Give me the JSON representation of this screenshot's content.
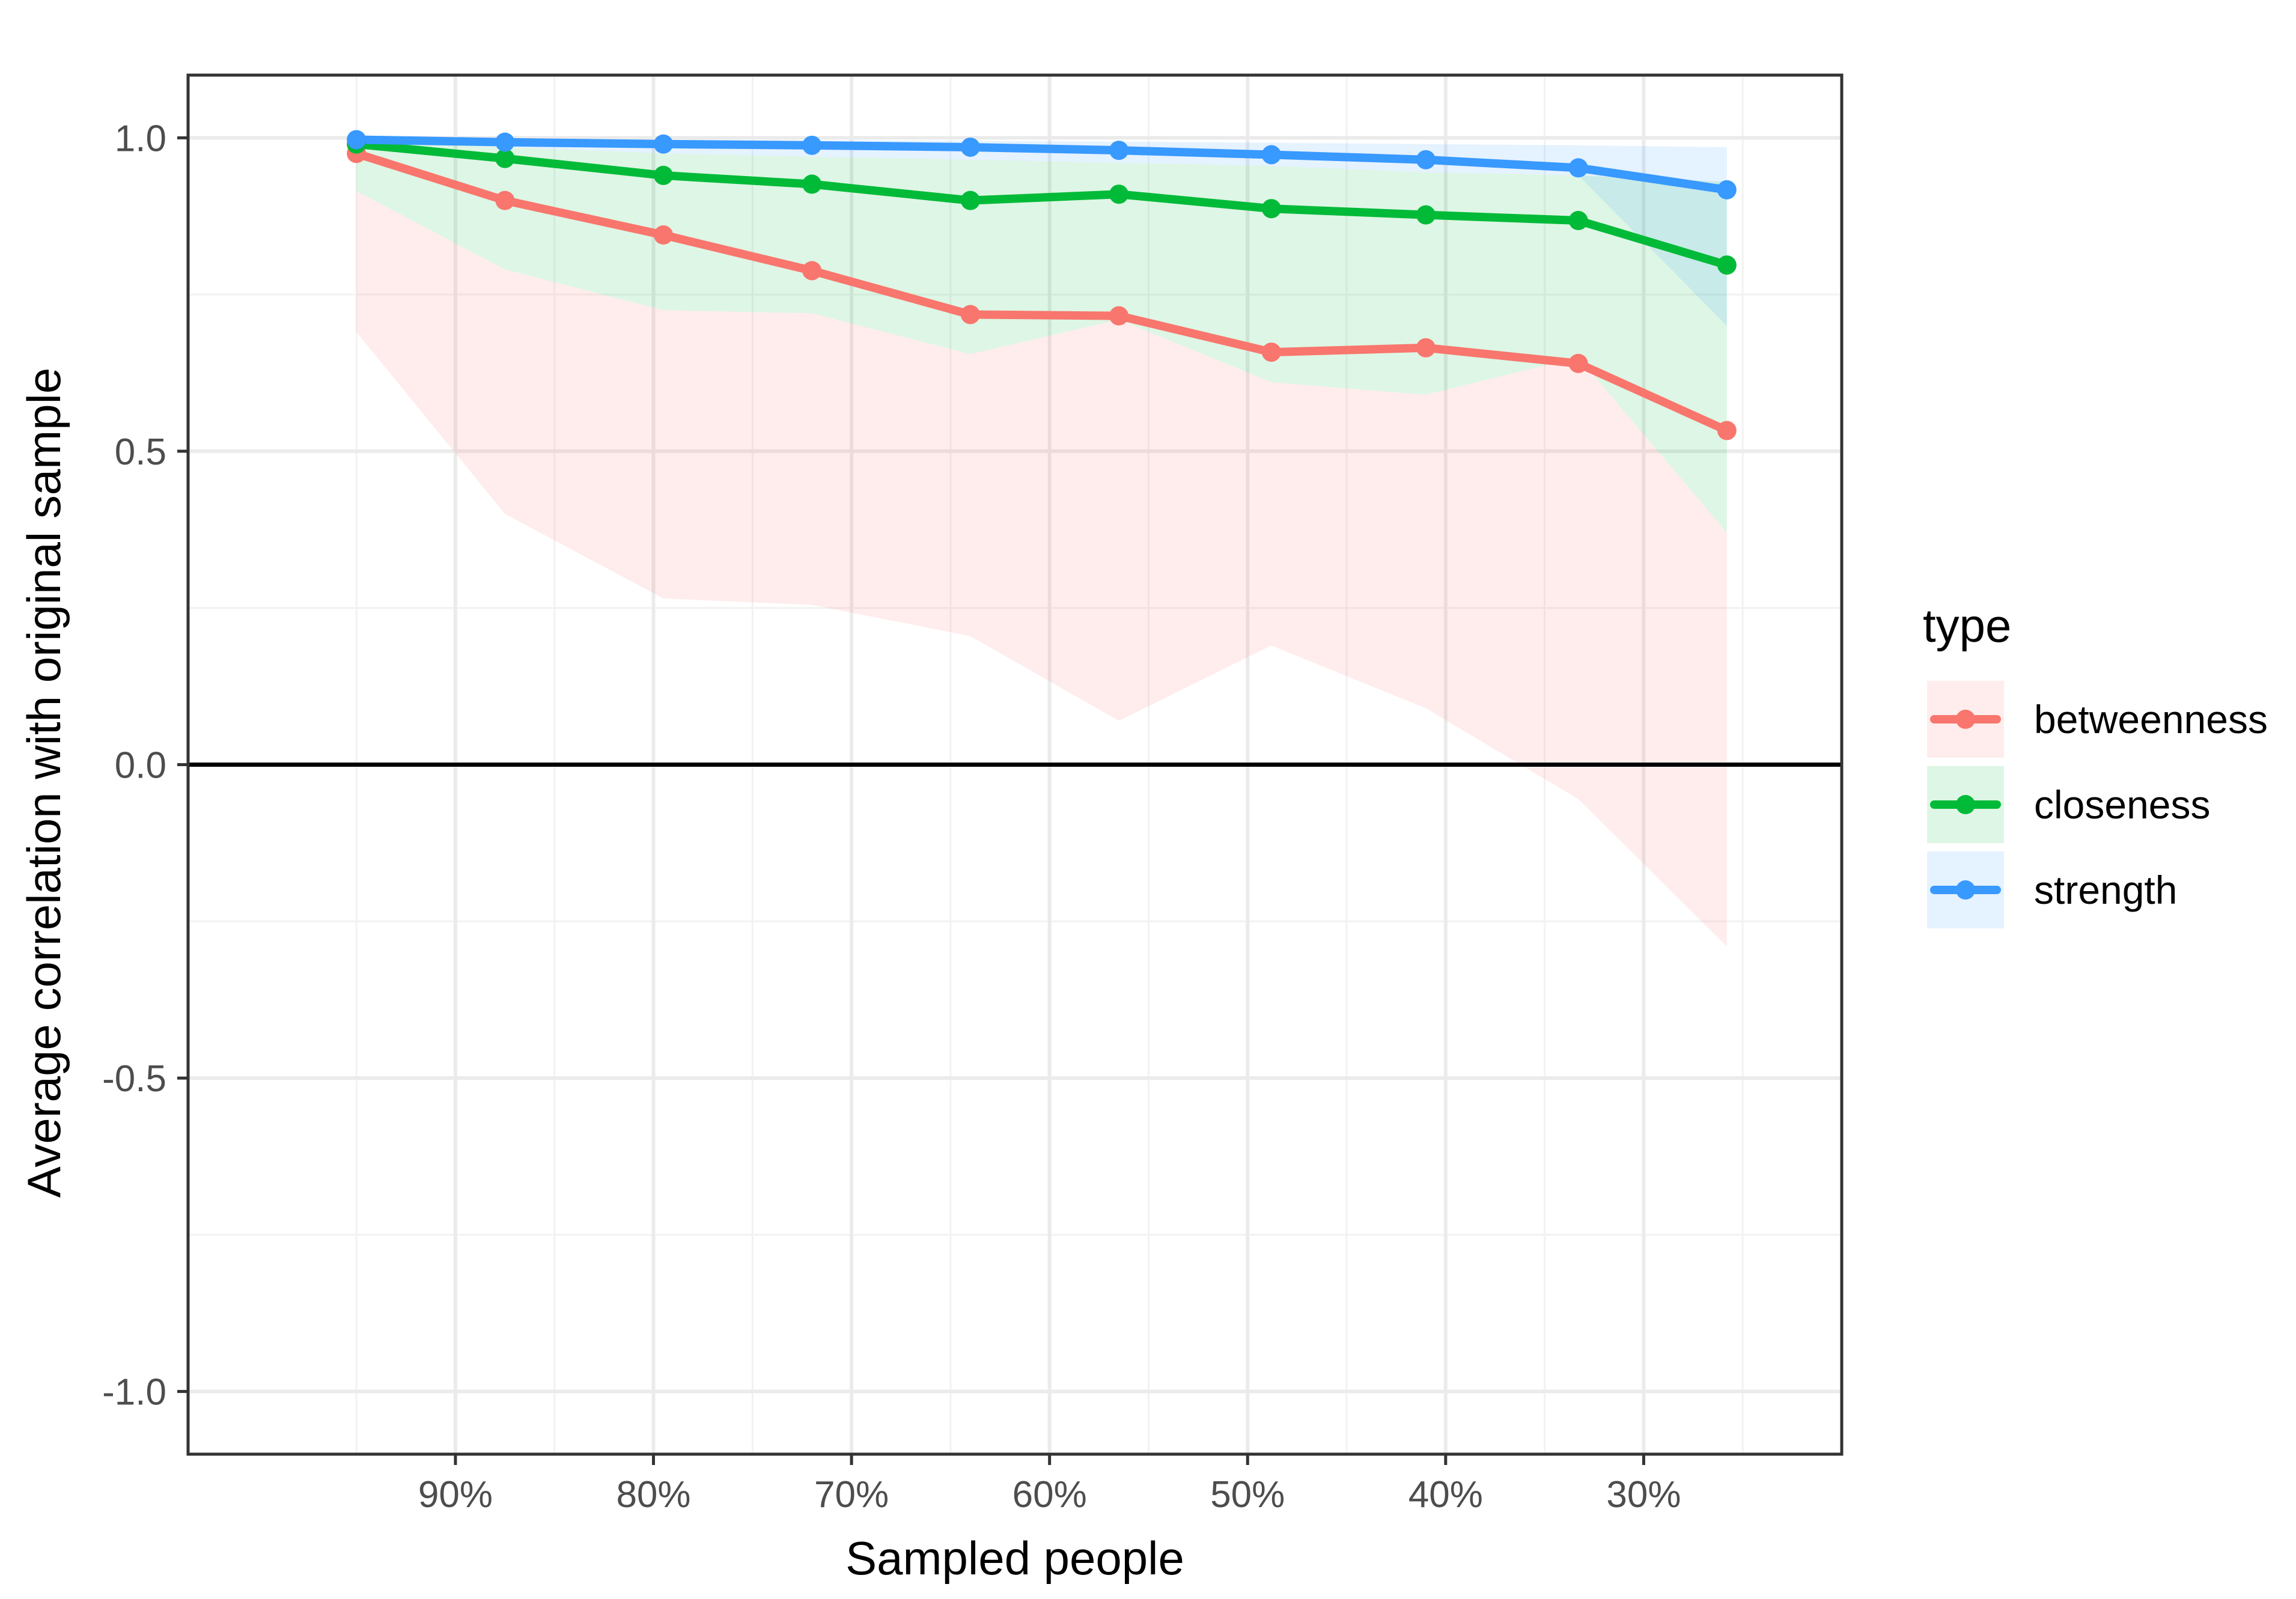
{
  "chart_data": {
    "type": "line",
    "title": "",
    "xlabel": "Sampled people",
    "ylabel": "Average correlation with original sample",
    "x": [
      0.95,
      0.875,
      0.795,
      0.72,
      0.64,
      0.565,
      0.488,
      0.41,
      0.333,
      0.258
    ],
    "xlim": [
      1.035,
      0.2
    ],
    "ylim": [
      -1.1,
      1.1
    ],
    "x_ticks": [
      {
        "value": 0.9,
        "label": "90%"
      },
      {
        "value": 0.8,
        "label": "80%"
      },
      {
        "value": 0.7,
        "label": "70%"
      },
      {
        "value": 0.6,
        "label": "60%"
      },
      {
        "value": 0.5,
        "label": "50%"
      },
      {
        "value": 0.4,
        "label": "40%"
      },
      {
        "value": 0.3,
        "label": "30%"
      }
    ],
    "y_ticks": [
      {
        "value": 1.0,
        "label": "1.0"
      },
      {
        "value": 0.5,
        "label": "0.5"
      },
      {
        "value": 0.0,
        "label": "0.0"
      },
      {
        "value": -0.5,
        "label": "-0.5"
      },
      {
        "value": -1.0,
        "label": "-1.0"
      }
    ],
    "hline": 0,
    "grid": true,
    "legend": {
      "title": "type",
      "position": "right"
    },
    "series": [
      {
        "name": "betweenness",
        "color": "#F8766D",
        "values": [
          0.975,
          0.9,
          0.845,
          0.788,
          0.718,
          0.716,
          0.658,
          0.665,
          0.64,
          0.533
        ],
        "band_upper": [
          0.915,
          0.79,
          0.725,
          0.72,
          0.655,
          0.71,
          0.61,
          0.59,
          0.65,
          0.37
        ],
        "band_lower": [
          0.69,
          0.4,
          0.265,
          0.255,
          0.205,
          0.07,
          0.19,
          0.09,
          -0.055,
          -0.29
        ]
      },
      {
        "name": "closeness",
        "color": "#00BA38",
        "values": [
          0.99,
          0.967,
          0.94,
          0.926,
          0.9,
          0.91,
          0.887,
          0.877,
          0.868,
          0.797
        ],
        "band_upper": [
          0.995,
          0.985,
          0.975,
          0.97,
          0.965,
          0.96,
          0.955,
          0.945,
          0.94,
          0.93
        ],
        "band_lower": [
          0.915,
          0.79,
          0.725,
          0.72,
          0.655,
          0.71,
          0.61,
          0.59,
          0.65,
          0.37
        ]
      },
      {
        "name": "strength",
        "color": "#3899FF",
        "values": [
          0.997,
          0.993,
          0.99,
          0.988,
          0.985,
          0.98,
          0.973,
          0.965,
          0.952,
          0.917
        ],
        "band_upper": [
          0.999,
          0.998,
          0.997,
          0.996,
          0.995,
          0.994,
          0.992,
          0.99,
          0.988,
          0.985
        ],
        "band_lower": [
          0.995,
          0.985,
          0.975,
          0.97,
          0.965,
          0.96,
          0.955,
          0.945,
          0.94,
          0.7
        ]
      }
    ]
  }
}
